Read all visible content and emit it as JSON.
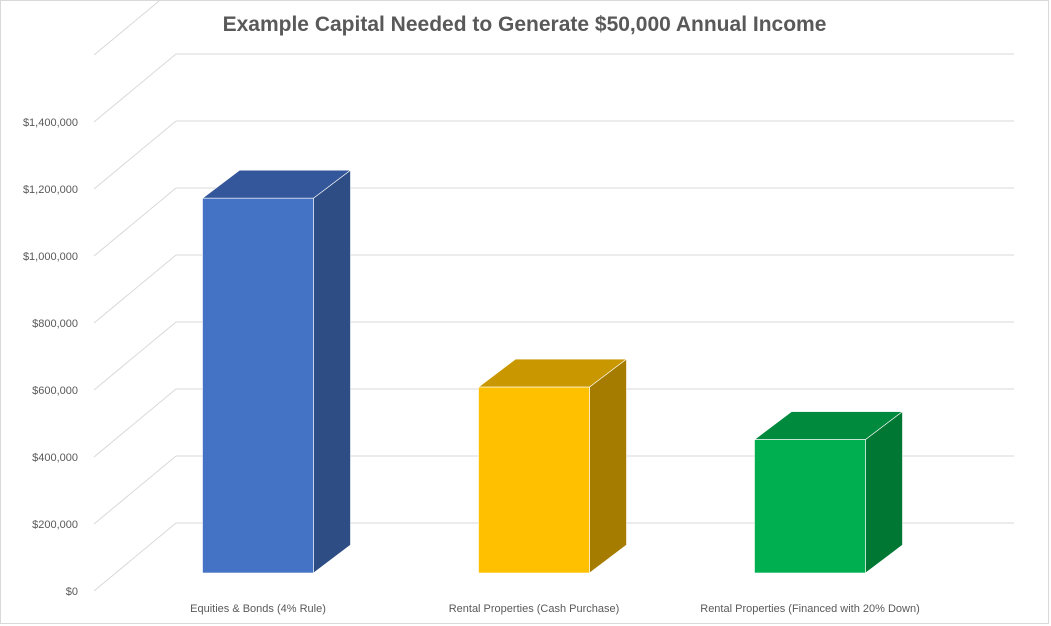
{
  "chart_data": {
    "type": "bar",
    "title": "Example Capital Needed to Generate $50,000 Annual Income",
    "xlabel": "",
    "ylabel": "",
    "categories": [
      "Equities & Bonds (4% Rule)",
      "Rental Properties (Cash Purchase)",
      "Rental Properties (Financed with 20% Down)"
    ],
    "values": [
      1250000,
      620000,
      445000
    ],
    "ylim": [
      0,
      1400000
    ],
    "yticks": [
      0,
      200000,
      400000,
      600000,
      800000,
      1000000,
      1200000,
      1400000
    ],
    "ytick_labels": [
      "$0",
      "$200,000",
      "$400,000",
      "$600,000",
      "$800,000",
      "$1,000,000",
      "$1,200,000",
      "$1,400,000"
    ],
    "bar_colors": [
      {
        "front": "#4472c4",
        "side": "#2e4d85",
        "top": "#34569a"
      },
      {
        "front": "#ffc000",
        "side": "#a67c00",
        "top": "#c99700"
      },
      {
        "front": "#00b050",
        "side": "#007733",
        "top": "#008a3e"
      }
    ],
    "grid": true,
    "legend": "none",
    "style": "3d-column"
  }
}
